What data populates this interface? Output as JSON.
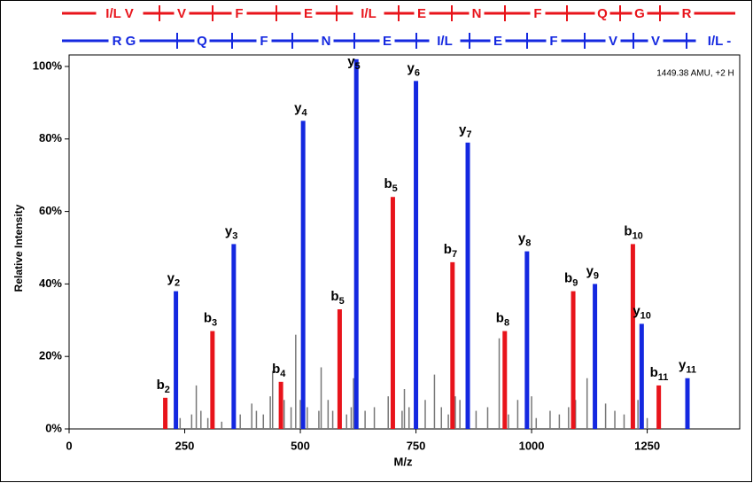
{
  "chart_data": {
    "type": "spectrum",
    "annotation": "1449.38 AMU, +2 H",
    "x_label": "M/z",
    "y_label": "Relative Intensity",
    "xlim": [
      0,
      1450
    ],
    "ylim": [
      0,
      100
    ],
    "xticks": [
      0,
      250,
      500,
      750,
      1000,
      1250
    ],
    "yticks": [
      {
        "value": 0,
        "label": "0%"
      },
      {
        "value": 20,
        "label": "20%"
      },
      {
        "value": 40,
        "label": "40%"
      },
      {
        "value": 60,
        "label": "60%"
      },
      {
        "value": 80,
        "label": "80%"
      },
      {
        "value": 100,
        "label": "100%"
      }
    ],
    "sequences": [
      {
        "color": "#e8141b",
        "residues": [
          "I/L V",
          "V",
          "F",
          "E",
          "I/L",
          "E",
          "N",
          "F",
          "Q",
          "G",
          "R"
        ]
      },
      {
        "color": "#1428e0",
        "residues": [
          "R G",
          "Q",
          "F",
          "N",
          "E",
          "I/L",
          "E",
          "F",
          "V",
          "V",
          "I/L -"
        ]
      }
    ],
    "series": [
      {
        "color": "#777777",
        "x": [
          240,
          265,
          275,
          285,
          300,
          330,
          370,
          395,
          405,
          420,
          435,
          440,
          465,
          480,
          490,
          500,
          515,
          540,
          545,
          560,
          570,
          600,
          610,
          615,
          640,
          660,
          690,
          720,
          725,
          735,
          770,
          790,
          805,
          820,
          835,
          845,
          880,
          905,
          930,
          950,
          970,
          1000,
          1010,
          1040,
          1060,
          1080,
          1095,
          1120,
          1160,
          1180,
          1200,
          1230,
          1250
        ],
        "values": [
          3,
          4,
          12,
          5,
          3,
          2,
          4,
          7,
          5,
          4,
          9,
          16,
          8,
          6,
          26,
          8,
          6,
          5,
          17,
          8,
          5,
          4,
          6,
          14,
          5,
          6,
          9,
          5,
          11,
          6,
          8,
          15,
          6,
          4,
          9,
          8,
          5,
          6,
          25,
          4,
          8,
          9,
          3,
          5,
          4,
          6,
          8,
          14,
          7,
          5,
          4,
          8,
          3
        ]
      },
      {
        "color": "#e8141b",
        "ion": "b",
        "x": [
          208,
          310,
          458,
          585,
          700,
          829,
          942,
          1090,
          1219,
          1275
        ],
        "values": [
          8.6,
          27,
          13,
          33,
          64,
          46,
          27,
          38,
          51,
          12
        ],
        "subs": [
          "2",
          "3",
          "4",
          "5",
          "5",
          "7",
          "8",
          "9",
          "10",
          "11"
        ]
      },
      {
        "color": "#1428e0",
        "ion": "y",
        "x": [
          231,
          356,
          506,
          621,
          750,
          862,
          990,
          1137,
          1238,
          1337
        ],
        "values": [
          38,
          51,
          85,
          102,
          96,
          79,
          49,
          40,
          29,
          14
        ],
        "subs": [
          "2",
          "3",
          "4",
          "5",
          "6",
          "7",
          "8",
          "9",
          "10",
          "11"
        ]
      }
    ]
  }
}
